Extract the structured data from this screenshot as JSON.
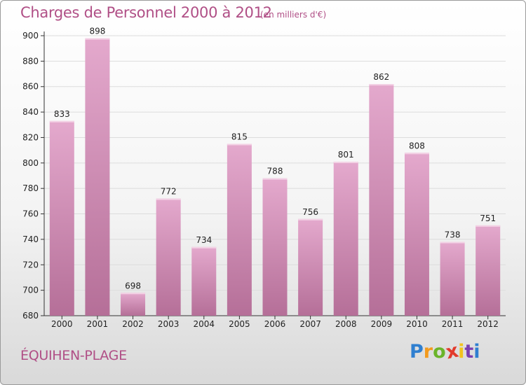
{
  "header": {
    "title": "Charges de Personnel 2000 à 2012",
    "subtitle": "(en milliers d'€)"
  },
  "footer": {
    "location": "ÉQUIHEN-PLAGE",
    "logo_text": "Proxiti"
  },
  "colors": {
    "bar_top": "#e4a9cd",
    "bar_bottom": "#b56f98",
    "title": "#b04f86",
    "grid": "#dcdcdc"
  },
  "chart_data": {
    "type": "bar",
    "categories": [
      "2000",
      "2001",
      "2002",
      "2003",
      "2004",
      "2005",
      "2006",
      "2007",
      "2008",
      "2009",
      "2010",
      "2011",
      "2012"
    ],
    "values": [
      833,
      898,
      698,
      772,
      734,
      815,
      788,
      756,
      801,
      862,
      808,
      738,
      751
    ],
    "title": "Charges de Personnel 2000 à 2012",
    "subtitle": "(en milliers d'€)",
    "xlabel": "",
    "ylabel": "",
    "ylim": [
      680,
      900
    ],
    "yticks": [
      680,
      700,
      720,
      740,
      760,
      780,
      800,
      820,
      840,
      860,
      880,
      900
    ],
    "grid": true,
    "legend": "none"
  }
}
